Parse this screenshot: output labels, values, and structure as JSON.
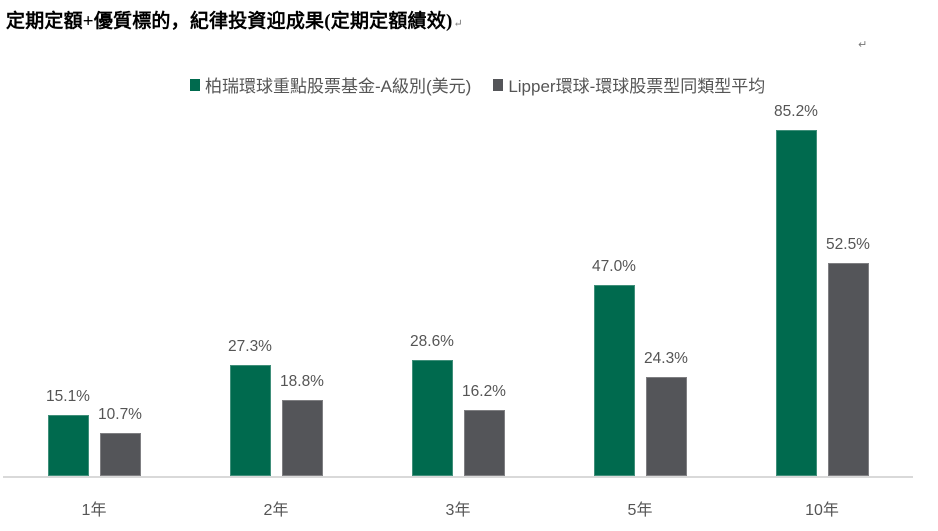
{
  "document": {
    "title": "定期定額+優質標的，紀律投資迎成果(定期定額績效)",
    "paragraph_mark": "↵"
  },
  "chart_data": {
    "type": "bar",
    "title": "定期定額+優質標的，紀律投資迎成果(定期定額績效)",
    "xlabel": "",
    "ylabel": "",
    "categories": [
      "1年",
      "2年",
      "3年",
      "5年",
      "10年"
    ],
    "series": [
      {
        "name": "柏瑞環球重點股票基金-A級別(美元)",
        "color": "#006a4e",
        "values": [
          15.1,
          27.3,
          28.6,
          47.0,
          85.2
        ],
        "labels": [
          "15.1%",
          "27.3%",
          "28.6%",
          "47.0%",
          "85.2%"
        ]
      },
      {
        "name": "Lipper環球-環球股票型同類型平均",
        "color": "#545559",
        "values": [
          10.7,
          18.8,
          16.2,
          24.3,
          52.5
        ],
        "labels": [
          "10.7%",
          "18.8%",
          "16.2%",
          "24.3%",
          "52.5%"
        ]
      }
    ],
    "ylim": [
      0,
      90
    ],
    "grid": false,
    "legend_position": "top",
    "data_labels": true,
    "value_format": "percent_1dp"
  },
  "legend": {
    "items": [
      {
        "label": "柏瑞環球重點股票基金-A級別(美元)",
        "color": "#006a4e"
      },
      {
        "label": "Lipper環球-環球股票型同類型平均",
        "color": "#545559"
      }
    ]
  },
  "colors": {
    "axis_line": "#d9d9d9",
    "text": "#555555"
  }
}
